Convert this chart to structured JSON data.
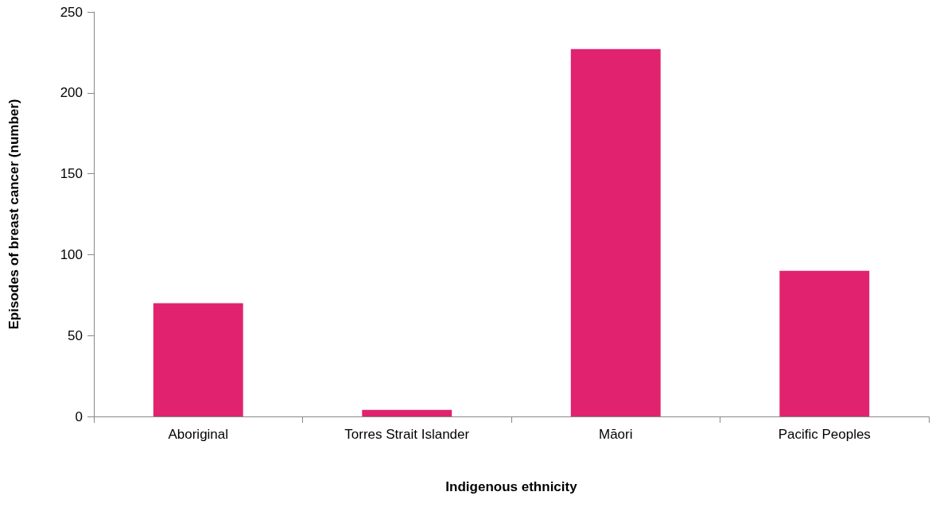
{
  "chart_data": {
    "type": "bar",
    "xlabel": "Indigenous ethnicity",
    "ylabel": "Episodes of breast cancer (number)",
    "categories": [
      "Aboriginal",
      "Torres Strait Islander",
      "Māori",
      "Pacific Peoples"
    ],
    "values": [
      70,
      4,
      227,
      90
    ],
    "color": "#e0226f",
    "ylim": [
      0,
      250
    ],
    "yticks": [
      0,
      50,
      100,
      150,
      200,
      250
    ],
    "grid": false
  }
}
